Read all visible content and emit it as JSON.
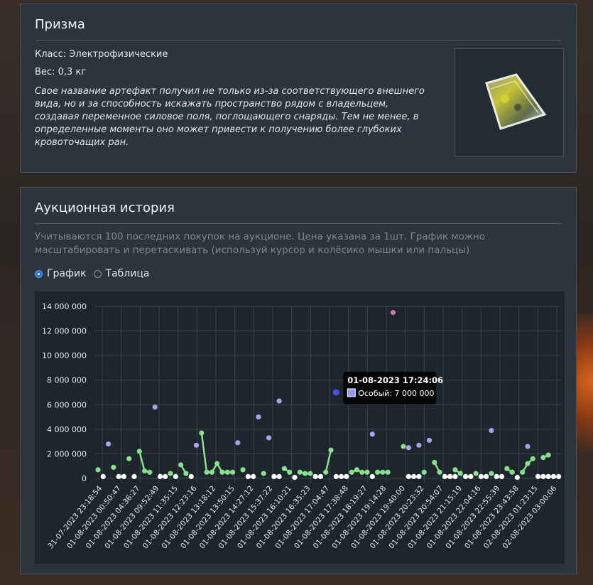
{
  "item": {
    "title": "Призма",
    "class_line": "Класс: Электрофизические",
    "weight_line": "Вес: 0,3 кг",
    "description": "Свое название артефакт получил не только из-за соответствующего внешнего вида, но и за способность искажать пространство рядом с владельцем, создавая переменное силовое поля, поглощающего снаряды. Тем не менее, в определенные моменты оно может привести к получению более глубоких кровоточащих ран."
  },
  "auction": {
    "title": "Аукционная история",
    "hint": "Учитываются 100 последних покупок на аукционе. Цена указана за 1шт. График можно масштабировать и перетаскивать (используй курсор и колёсико мышки или пальцы)",
    "view_options": [
      {
        "label": "График",
        "selected": true
      },
      {
        "label": "Таблица",
        "selected": false
      }
    ]
  },
  "colors": {
    "common": "#ffffff",
    "uncommon": "#86e08c",
    "rare": "#a7a4ec",
    "special_tooltip_swatch": "#9c98f0",
    "exclusive": "#d06fb8",
    "highlight": "#4a4cff"
  },
  "chart_data": {
    "type": "scatter",
    "ylim": [
      0,
      14000000
    ],
    "yticks": [
      "0",
      "2 000 000",
      "4 000 000",
      "6 000 000",
      "8 000 000",
      "10 000 000",
      "12 000 000",
      "14 000 000"
    ],
    "x_tick_labels": [
      "31-07-2023 23:18:54",
      "01-08-2023 00:50:47",
      "01-08-2023 04:36:27",
      "01-08-2023 09:52:49",
      "01-08-2023 11:35:15",
      "01-08-2023 12:23:16",
      "01-08-2023 13:18:12",
      "01-08-2023 13:50:15",
      "01-08-2023 14:27:12",
      "01-08-2023 15:37:22",
      "01-08-2023 16:10:21",
      "01-08-2023 16:35:23",
      "01-08-2023 17:04:47",
      "01-08-2023 17:38:48",
      "01-08-2023 18:19:27",
      "01-08-2023 19:14:28",
      "01-08-2023 19:40:00",
      "01-08-2023 20:23:32",
      "01-08-2023 20:54:07",
      "01-08-2023 21:15:19",
      "01-08-2023 22:04:16",
      "01-08-2023 22:55:39",
      "01-08-2023 23:43:58",
      "02-08-2023 01:23:15",
      "02-08-2023 03:00:06"
    ],
    "series": [
      {
        "tier": "common",
        "points": [
          [
            1,
            150000
          ],
          [
            4,
            150000
          ],
          [
            5,
            150000
          ],
          [
            7,
            150000
          ],
          [
            12,
            150000
          ],
          [
            13,
            150000
          ],
          [
            15,
            150000
          ],
          [
            18,
            150000
          ],
          [
            29,
            150000
          ],
          [
            30,
            150000
          ],
          [
            34,
            150000
          ],
          [
            35,
            150000
          ],
          [
            38,
            80000
          ],
          [
            42,
            150000
          ],
          [
            43,
            150000
          ],
          [
            46,
            150000
          ],
          [
            47,
            150000
          ],
          [
            48,
            150000
          ],
          [
            53,
            150000
          ],
          [
            60,
            150000
          ],
          [
            61,
            150000
          ],
          [
            62,
            150000
          ],
          [
            67,
            150000
          ],
          [
            68,
            150000
          ],
          [
            69,
            150000
          ],
          [
            71,
            150000
          ],
          [
            72,
            150000
          ],
          [
            74,
            150000
          ],
          [
            75,
            150000
          ],
          [
            77,
            150000
          ],
          [
            78,
            150000
          ],
          [
            81,
            80000
          ],
          [
            85,
            150000
          ],
          [
            86,
            150000
          ],
          [
            87,
            150000
          ],
          [
            88,
            150000
          ],
          [
            89,
            150000
          ]
        ]
      },
      {
        "tier": "uncommon",
        "points": [
          [
            0,
            700000
          ],
          [
            3,
            900000
          ],
          [
            6,
            1600000
          ],
          [
            8,
            2200000
          ],
          [
            9,
            600000
          ],
          [
            10,
            500000
          ],
          [
            14,
            400000
          ],
          [
            16,
            1100000
          ],
          [
            17,
            400000
          ],
          [
            20,
            3700000
          ],
          [
            21,
            500000
          ],
          [
            22,
            500000
          ],
          [
            23,
            1200000
          ],
          [
            24,
            500000
          ],
          [
            25,
            500000
          ],
          [
            26,
            500000
          ],
          [
            28,
            700000
          ],
          [
            32,
            400000
          ],
          [
            36,
            800000
          ],
          [
            37,
            500000
          ],
          [
            39,
            500000
          ],
          [
            40,
            400000
          ],
          [
            41,
            400000
          ],
          [
            44,
            500000
          ],
          [
            45,
            2300000
          ],
          [
            49,
            500000
          ],
          [
            50,
            700000
          ],
          [
            51,
            500000
          ],
          [
            52,
            500000
          ],
          [
            54,
            500000
          ],
          [
            55,
            500000
          ],
          [
            56,
            500000
          ],
          [
            59,
            2600000
          ],
          [
            63,
            500000
          ],
          [
            65,
            1300000
          ],
          [
            66,
            500000
          ],
          [
            69,
            700000
          ],
          [
            70,
            400000
          ],
          [
            73,
            400000
          ],
          [
            76,
            400000
          ],
          [
            79,
            800000
          ],
          [
            80,
            500000
          ],
          [
            82,
            500000
          ],
          [
            83,
            1200000
          ],
          [
            84,
            1600000
          ],
          [
            86,
            1700000
          ],
          [
            87,
            1900000
          ]
        ]
      },
      {
        "tier": "rare",
        "points": [
          [
            2,
            2800000
          ],
          [
            11,
            5800000
          ],
          [
            19,
            2700000
          ],
          [
            27,
            2900000
          ],
          [
            31,
            5000000
          ],
          [
            33,
            3300000
          ],
          [
            35,
            6300000
          ],
          [
            46,
            7000000
          ],
          [
            53,
            3600000
          ],
          [
            60,
            2500000
          ],
          [
            62,
            2700000
          ],
          [
            64,
            3100000
          ],
          [
            76,
            3900000
          ],
          [
            83,
            2600000
          ]
        ]
      },
      {
        "tier": "exclusive",
        "points": [
          [
            57,
            13500000
          ]
        ]
      }
    ],
    "tooltip": {
      "title": "01-08-2023 17:24:06",
      "label": "Особый: 7 000 000",
      "point_index": 46,
      "value": 7000000
    }
  }
}
